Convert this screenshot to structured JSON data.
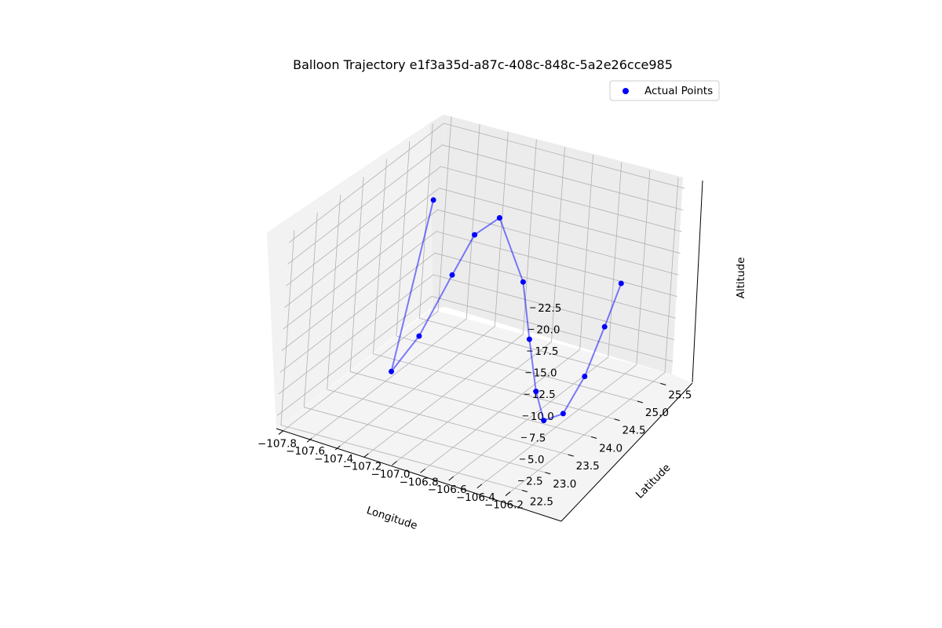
{
  "chart_data": {
    "type": "scatter",
    "subtype": "3d-line-scatter",
    "title": "Balloon Trajectory e1f3a35d-a87c-408c-848c-5a2e26cce985",
    "xlabel": "Longitude",
    "ylabel": "Latitude",
    "zlabel": "Altitude",
    "x_ticks": [
      "−107.8",
      "−107.6",
      "−107.4",
      "−107.2",
      "−107.0",
      "−106.8",
      "−106.6",
      "−106.4",
      "−106.2"
    ],
    "y_ticks": [
      "22.5",
      "23.0",
      "23.5",
      "24.0",
      "24.5",
      "25.0",
      "25.5"
    ],
    "z_ticks": [
      "2.5",
      "5.0",
      "7.5",
      "10.0",
      "12.5",
      "15.0",
      "17.5",
      "20.0",
      "22.5"
    ],
    "xlim": [
      -107.85,
      -106.15
    ],
    "ylim": [
      22.4,
      25.75
    ],
    "zlim": [
      1.0,
      23.5
    ],
    "grid": true,
    "legend": {
      "position": "top-right",
      "entries": [
        "Actual Points"
      ]
    },
    "colors": {
      "points": "#0000ff",
      "line": "#0000ff",
      "line_alpha": 0.5
    },
    "series": [
      {
        "name": "Actual Points",
        "points": [
          {
            "longitude": -107.8,
            "latitude": 25.47,
            "altitude": 15.0
          },
          {
            "longitude": -107.58,
            "latitude": 24.05,
            "altitude": 2.0
          },
          {
            "longitude": -107.42,
            "latitude": 24.1,
            "altitude": 6.6
          },
          {
            "longitude": -107.25,
            "latitude": 24.2,
            "altitude": 14.0
          },
          {
            "longitude": -107.15,
            "latitude": 24.32,
            "altitude": 18.6
          },
          {
            "longitude": -107.04,
            "latitude": 24.5,
            "altitude": 20.3
          },
          {
            "longitude": -106.81,
            "latitude": 24.38,
            "altitude": 14.4
          },
          {
            "longitude": -106.7,
            "latitude": 24.25,
            "altitude": 8.8
          },
          {
            "longitude": -106.59,
            "latitude": 24.12,
            "altitude": 3.8
          },
          {
            "longitude": -106.48,
            "latitude": 23.98,
            "altitude": 1.5
          },
          {
            "longitude": -106.37,
            "latitude": 24.05,
            "altitude": 2.5
          },
          {
            "longitude": -106.26,
            "latitude": 24.12,
            "altitude": 7.0
          },
          {
            "longitude": -106.17,
            "latitude": 24.2,
            "altitude": 12.8
          },
          {
            "longitude": -106.1,
            "latitude": 24.28,
            "altitude": 17.8
          }
        ]
      }
    ]
  }
}
